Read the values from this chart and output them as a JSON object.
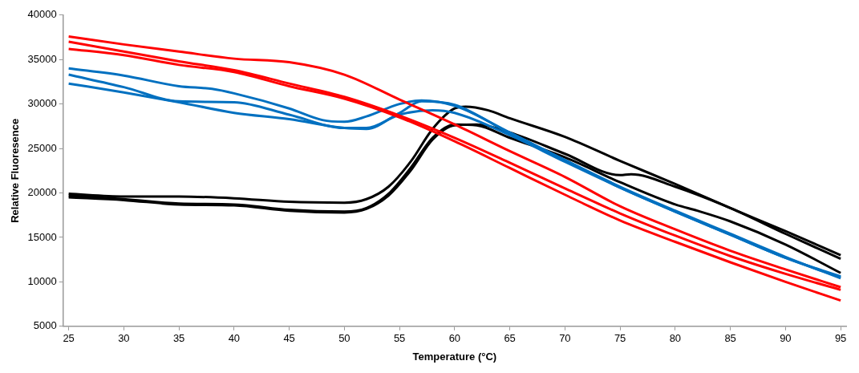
{
  "chart_data": {
    "type": "line",
    "xlabel": "Temperature (°C)",
    "ylabel": "Relative Fluoresence",
    "xlim": [
      24.5,
      95.5
    ],
    "xticks": [
      25,
      30,
      35,
      40,
      45,
      50,
      55,
      60,
      65,
      70,
      75,
      80,
      85,
      90,
      95
    ],
    "ylim": [
      5000,
      40000
    ],
    "yticks": [
      5000,
      10000,
      15000,
      20000,
      25000,
      30000,
      35000,
      40000
    ],
    "grid": false,
    "legend": false,
    "marker": "none",
    "line_style": "solid",
    "series": [
      {
        "color": "#ff0000",
        "x": [
          25,
          30,
          35,
          40,
          45,
          50,
          55,
          60,
          65,
          70,
          75,
          80,
          85,
          90,
          95
        ],
        "values": [
          37600,
          36700,
          35900,
          35100,
          34700,
          33300,
          30500,
          27700,
          24700,
          21800,
          18500,
          15900,
          13500,
          11400,
          9400
        ]
      },
      {
        "color": "#ff0000",
        "x": [
          25,
          30,
          35,
          40,
          45,
          50,
          55,
          60,
          65,
          70,
          75,
          80,
          85,
          90,
          95
        ],
        "values": [
          37000,
          35900,
          34800,
          33800,
          32300,
          30800,
          28700,
          26200,
          23400,
          20500,
          17700,
          15200,
          12900,
          10900,
          9100
        ]
      },
      {
        "color": "#ff0000",
        "x": [
          25,
          30,
          35,
          40,
          45,
          50,
          55,
          60,
          65,
          70,
          75,
          80,
          85,
          90,
          95
        ],
        "values": [
          36200,
          35500,
          34400,
          33600,
          32000,
          30600,
          28500,
          25800,
          22800,
          19800,
          16900,
          14500,
          12200,
          10000,
          7900
        ]
      },
      {
        "color": "#0070c0",
        "x": [
          25,
          30,
          35,
          38,
          40,
          45,
          48,
          50,
          52,
          55,
          57,
          60,
          65,
          70,
          75,
          80,
          85,
          90,
          95
        ],
        "values": [
          34000,
          33200,
          32000,
          31700,
          31200,
          29500,
          28200,
          28000,
          28600,
          30000,
          30400,
          29800,
          26800,
          23700,
          20700,
          18000,
          15400,
          12800,
          10400
        ]
      },
      {
        "color": "#0070c0",
        "x": [
          25,
          30,
          35,
          40,
          45,
          50,
          52,
          55,
          58,
          60,
          65,
          70,
          75,
          80,
          85,
          90,
          95
        ],
        "values": [
          33300,
          31900,
          30300,
          30200,
          28800,
          27300,
          27300,
          28800,
          29300,
          29000,
          26500,
          23500,
          20600,
          17900,
          15300,
          12700,
          10600
        ]
      },
      {
        "color": "#0070c0",
        "x": [
          25,
          30,
          35,
          40,
          45,
          50,
          52,
          55,
          57,
          60,
          65,
          70,
          75,
          80,
          85,
          90,
          95
        ],
        "values": [
          32300,
          31300,
          30200,
          29000,
          28300,
          27300,
          27200,
          29000,
          30300,
          29900,
          26700,
          23700,
          20600,
          17900,
          15300,
          12700,
          10500
        ]
      },
      {
        "color": "#000000",
        "x": [
          25,
          30,
          35,
          40,
          45,
          50,
          52,
          54,
          56,
          58,
          60,
          61,
          63,
          65,
          70,
          75,
          80,
          85,
          90,
          95
        ],
        "values": [
          19900,
          19600,
          19600,
          19400,
          19000,
          18900,
          19300,
          20700,
          23500,
          27200,
          29500,
          29700,
          29300,
          28400,
          26300,
          23600,
          21000,
          18300,
          15700,
          13000
        ]
      },
      {
        "color": "#000000",
        "x": [
          25,
          30,
          35,
          40,
          45,
          50,
          52,
          54,
          56,
          58,
          60,
          62,
          65,
          70,
          75,
          76,
          80,
          85,
          90,
          95
        ],
        "values": [
          19500,
          19200,
          18700,
          18600,
          18000,
          17800,
          18200,
          19700,
          22500,
          26000,
          27600,
          27700,
          26800,
          24400,
          22000,
          22100,
          20700,
          18300,
          15400,
          12600
        ]
      },
      {
        "color": "#000000",
        "x": [
          25,
          30,
          35,
          40,
          45,
          50,
          52,
          54,
          56,
          58,
          60,
          62,
          65,
          70,
          75,
          80,
          82,
          85,
          90,
          95
        ],
        "values": [
          19700,
          19300,
          18800,
          18700,
          18100,
          17900,
          18300,
          19900,
          22800,
          26200,
          27700,
          27600,
          26200,
          24000,
          21200,
          18700,
          18000,
          16800,
          14200,
          11000
        ]
      }
    ]
  }
}
